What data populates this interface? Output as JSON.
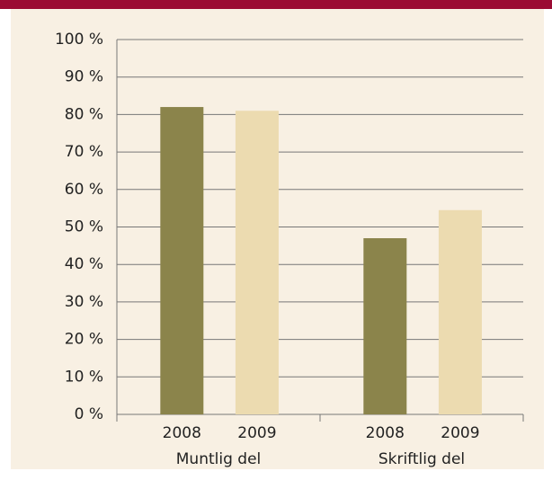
{
  "chart_data": {
    "type": "bar",
    "categories": [
      "Muntlig del",
      "Skriftlig del"
    ],
    "series": [
      {
        "name": "2008",
        "color": "#8b844b",
        "values": [
          82,
          47
        ]
      },
      {
        "name": "2009",
        "color": "#ecdbb0",
        "values": [
          81,
          54.5
        ]
      }
    ],
    "ylim": [
      0,
      100
    ],
    "yticks": [
      {
        "value": 0,
        "label": "0 %"
      },
      {
        "value": 10,
        "label": "10 %"
      },
      {
        "value": 20,
        "label": "20 %"
      },
      {
        "value": 30,
        "label": "30 %"
      },
      {
        "value": 40,
        "label": "40 %"
      },
      {
        "value": 50,
        "label": "50 %"
      },
      {
        "value": 60,
        "label": "60 %"
      },
      {
        "value": 70,
        "label": "70 %"
      },
      {
        "value": 80,
        "label": "80 %"
      },
      {
        "value": 90,
        "label": "90 %"
      },
      {
        "value": 100,
        "label": "100 %"
      }
    ],
    "grid": true
  }
}
